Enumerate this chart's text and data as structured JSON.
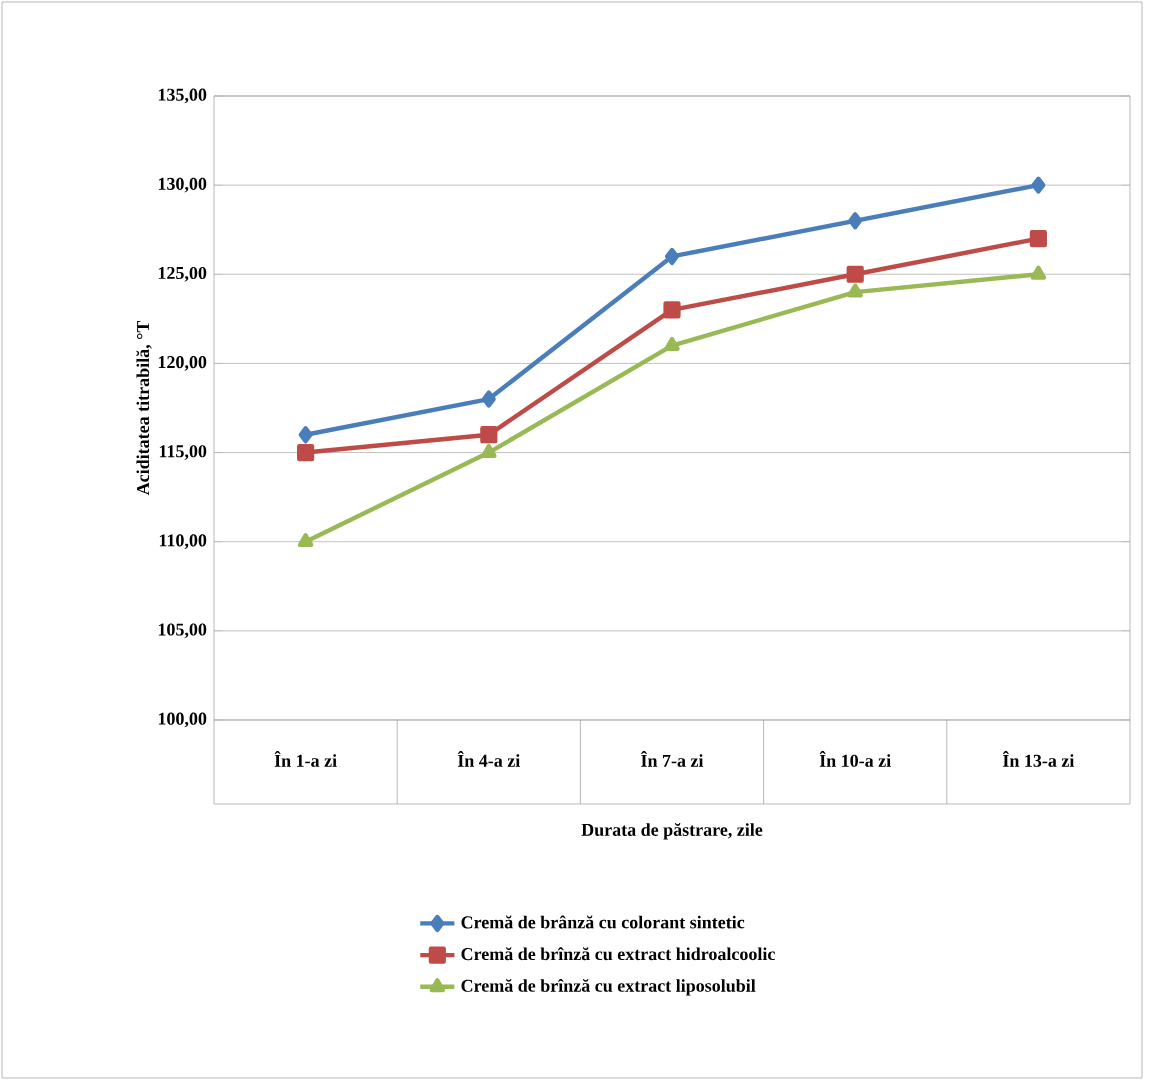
{
  "chart_data": {
    "type": "line",
    "xlabel": "Durata de păstrare, zile",
    "ylabel": "Aciditatea titrabilă, °T",
    "categories": [
      "În 1-a zi",
      "În 4-a zi",
      "În 7-a zi",
      "În 10-a zi",
      "În 13-a zi"
    ],
    "series": [
      {
        "name": "Cremă de brânză cu colorant sintetic",
        "color": "#4a7ebb",
        "marker": "diamond",
        "values": [
          116,
          118,
          126,
          128,
          130
        ]
      },
      {
        "name": "Cremă de brînză cu extract hidroalcoolic",
        "color": "#be4b48",
        "marker": "square",
        "values": [
          115,
          116,
          123,
          125,
          127
        ]
      },
      {
        "name": "Cremă de brînză  cu extract liposolubil",
        "color": "#98b954",
        "marker": "triangle",
        "values": [
          110,
          115,
          121,
          124,
          125
        ]
      }
    ],
    "ylim": [
      100,
      135
    ],
    "yticks": [
      {
        "value": 100,
        "label": "100,00"
      },
      {
        "value": 105,
        "label": "105,00"
      },
      {
        "value": 110,
        "label": "110,00"
      },
      {
        "value": 115,
        "label": "115,00"
      },
      {
        "value": 120,
        "label": "120,00"
      },
      {
        "value": 125,
        "label": "125,00"
      },
      {
        "value": 130,
        "label": "130,00"
      },
      {
        "value": 135,
        "label": "135,00"
      }
    ],
    "grid": "y",
    "legend": "bottom",
    "line_style": "solid"
  }
}
